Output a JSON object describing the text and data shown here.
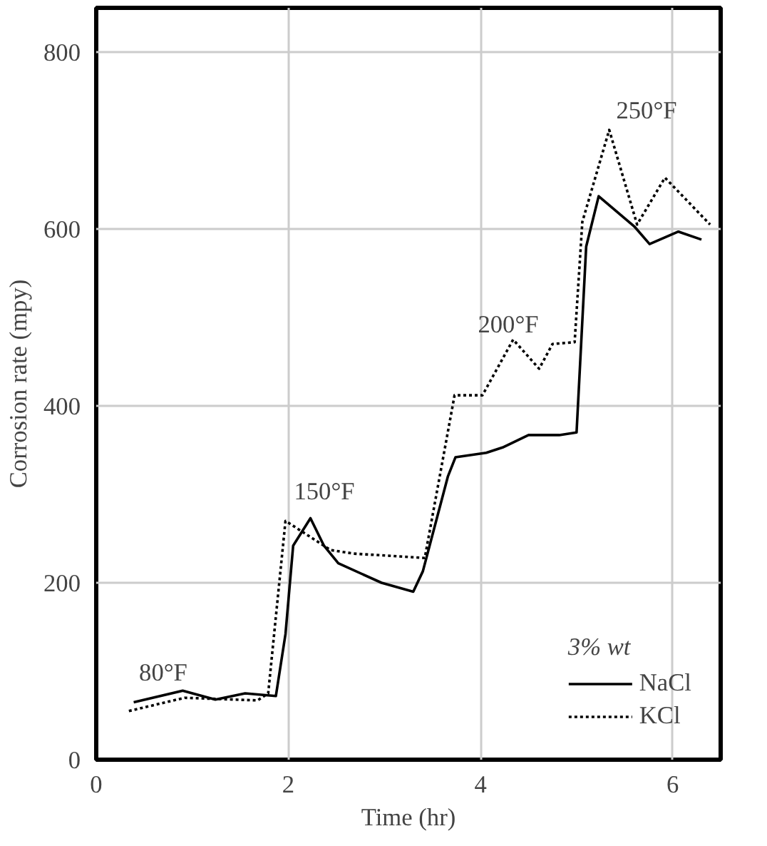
{
  "chart_data": {
    "type": "line",
    "xlabel": "Time (hr)",
    "ylabel": "Corrosion rate (mpy)",
    "legend_title": "3% wt",
    "xlim": [
      0,
      6.5
    ],
    "ylim": [
      0,
      850
    ],
    "xticks": [
      0,
      2,
      4,
      6
    ],
    "yticks": [
      0,
      200,
      400,
      600,
      800
    ],
    "grid": true,
    "legend": "bottom right",
    "series": [
      {
        "name": "NaCl",
        "color": "#000000",
        "line_style": "solid",
        "x": [
          0.39,
          0.9,
          1.24,
          1.55,
          1.87,
          1.97,
          2.05,
          2.23,
          2.37,
          2.52,
          2.97,
          3.3,
          3.4,
          3.66,
          3.74,
          4.06,
          4.23,
          4.5,
          4.82,
          5.0,
          5.1,
          5.23,
          5.6,
          5.76,
          6.06,
          6.3
        ],
        "values": [
          65,
          78,
          68,
          75,
          72,
          142,
          242,
          273,
          242,
          222,
          200,
          190,
          213,
          320,
          342,
          347,
          353,
          367,
          367,
          370,
          580,
          637,
          603,
          583,
          597,
          588
        ]
      },
      {
        "name": "KCl",
        "color": "#000000",
        "line_style": "dotted",
        "x": [
          0.34,
          0.92,
          1.68,
          1.79,
          1.97,
          2.44,
          2.68,
          3.42,
          3.73,
          4.02,
          4.34,
          4.61,
          4.75,
          4.98,
          5.06,
          5.34,
          5.63,
          5.92,
          6.39
        ],
        "values": [
          55,
          70,
          67,
          75,
          270,
          237,
          233,
          228,
          412,
          412,
          475,
          442,
          470,
          472,
          608,
          712,
          605,
          658,
          605
        ]
      }
    ],
    "annotations": [
      "80°F",
      "150°F",
      "200°F",
      "250°F"
    ]
  }
}
